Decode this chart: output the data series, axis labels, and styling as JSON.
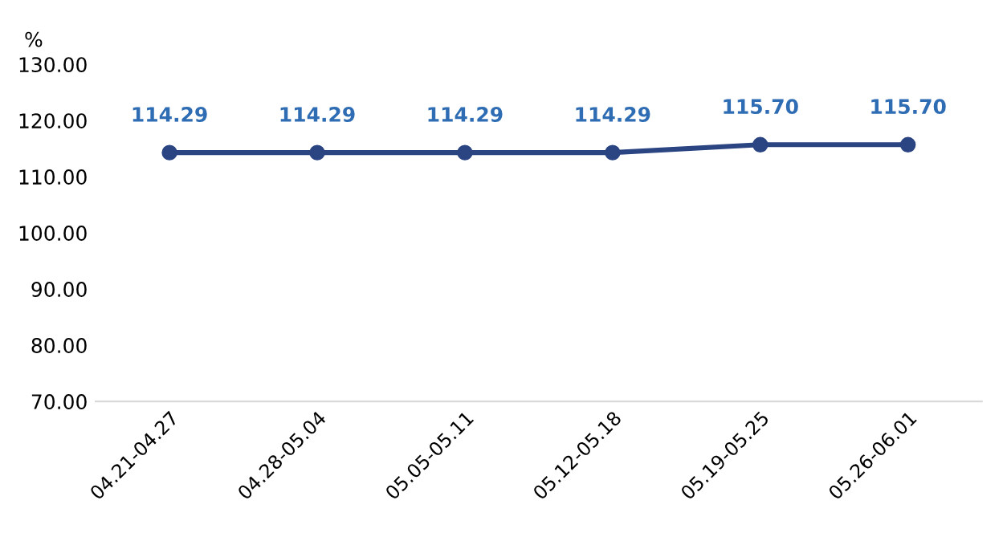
{
  "chart_data": {
    "type": "line",
    "categories": [
      "04.21-04.27",
      "04.28-05.04",
      "05.05-05.11",
      "05.12-05.18",
      "05.19-05.25",
      "05.26-06.01"
    ],
    "series": [
      {
        "color": "#2b4482",
        "values": [
          114.29,
          114.29,
          114.29,
          114.29,
          115.7,
          115.7
        ],
        "value_labels": [
          "114.29",
          "114.29",
          "114.29",
          "114.29",
          "115.70",
          "115.70"
        ]
      }
    ],
    "ylabel": "%",
    "ylim": [
      70,
      130
    ],
    "yticks": [
      {
        "value": 70,
        "label": "70.00"
      },
      {
        "value": 80,
        "label": "80.00"
      },
      {
        "value": 90,
        "label": "90.00"
      },
      {
        "value": 100,
        "label": "100.00"
      },
      {
        "value": 110,
        "label": "110.00"
      },
      {
        "value": 120,
        "label": "120.00"
      },
      {
        "value": 130,
        "label": "130.00"
      }
    ],
    "marker": "circle",
    "line_style": "solid",
    "grid": false,
    "legend": false
  }
}
